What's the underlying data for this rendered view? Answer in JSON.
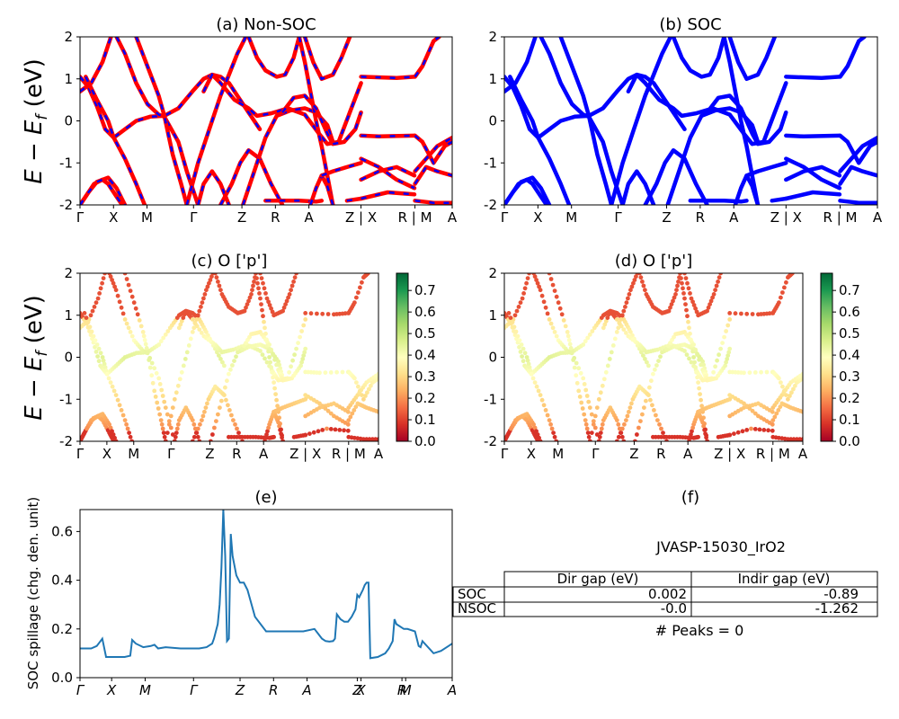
{
  "figure": {
    "background": "#ffffff"
  },
  "ylabel_band": "E − E",
  "ylabel_sub": "f",
  "ylabel_unit": " (eV)",
  "kpath_labels": [
    "Γ",
    "X",
    "M",
    "Γ",
    "Z",
    "R",
    "A",
    "Z | X",
    "R | M",
    "A"
  ],
  "kpath_labels_e": [
    "Γ",
    "X",
    "M",
    "Γ",
    "Z",
    "R",
    "A",
    "Z",
    "X",
    "R",
    "M",
    "A"
  ],
  "chart_data": [
    {
      "id": "a",
      "type": "line",
      "title": "(a) Non-SOC",
      "ylim": [
        -2,
        2
      ],
      "yticks": [
        -2,
        -1,
        0,
        1,
        2
      ],
      "colors": {
        "primary": "#ff0000",
        "dash": "#0000ff"
      },
      "bands": [
        [
          [
            0,
            -2
          ],
          [
            0.02,
            -1.8
          ],
          [
            0.05,
            -1.5
          ],
          [
            0.08,
            -1.4
          ],
          [
            0.1,
            -1.5
          ],
          [
            0.13,
            -1.8
          ],
          [
            0.15,
            -2
          ]
        ],
        [
          [
            0,
            -2
          ],
          [
            0.03,
            -1.7
          ],
          [
            0.06,
            -1.45
          ],
          [
            0.1,
            -1.35
          ],
          [
            0.13,
            -1.6
          ],
          [
            0.16,
            -2
          ]
        ],
        [
          [
            0,
            1.05
          ],
          [
            0.03,
            0.8
          ],
          [
            0.06,
            0.35
          ],
          [
            0.09,
            -0.2
          ],
          [
            0.12,
            -0.4
          ],
          [
            0.16,
            -0.2
          ],
          [
            0.2,
            0.0
          ],
          [
            0.25,
            0.1
          ],
          [
            0.3,
            0.12
          ],
          [
            0.35,
            0.3
          ],
          [
            0.4,
            0.7
          ],
          [
            0.44,
            1.0
          ],
          [
            0.47,
            1.1
          ],
          [
            0.5,
            1.05
          ],
          [
            0.53,
            0.9
          ],
          [
            0.56,
            0.6
          ],
          [
            0.6,
            0.2
          ],
          [
            0.64,
            -0.2
          ]
        ],
        [
          [
            0,
            0.7
          ],
          [
            0.04,
            0.9
          ],
          [
            0.08,
            1.4
          ],
          [
            0.11,
            2
          ]
        ],
        [
          [
            0.02,
            1.05
          ],
          [
            0.06,
            0.5
          ],
          [
            0.1,
            0.0
          ],
          [
            0.12,
            -0.4
          ],
          [
            0.16,
            -0.9
          ],
          [
            0.2,
            -1.5
          ],
          [
            0.23,
            -2
          ]
        ],
        [
          [
            0.13,
            2
          ],
          [
            0.16,
            1.6
          ],
          [
            0.2,
            0.9
          ],
          [
            0.24,
            0.4
          ],
          [
            0.28,
            0.15
          ],
          [
            0.3,
            0.1
          ],
          [
            0.35,
            -0.5
          ],
          [
            0.38,
            -1.2
          ],
          [
            0.42,
            -2
          ]
        ],
        [
          [
            0.2,
            2
          ],
          [
            0.24,
            1.3
          ],
          [
            0.28,
            0.6
          ],
          [
            0.3,
            0.12
          ],
          [
            0.33,
            -0.8
          ],
          [
            0.36,
            -1.5
          ],
          [
            0.38,
            -2
          ]
        ],
        [
          [
            0.42,
            -2
          ],
          [
            0.44,
            -1.5
          ],
          [
            0.47,
            -1.2
          ],
          [
            0.5,
            -1.5
          ],
          [
            0.53,
            -2
          ]
        ],
        [
          [
            0.44,
            0.7
          ],
          [
            0.47,
            1.1
          ],
          [
            0.5,
            0.9
          ],
          [
            0.55,
            0.5
          ],
          [
            0.6,
            0.3
          ],
          [
            0.63,
            0.12
          ],
          [
            0.68,
            0.18
          ],
          [
            0.74,
            0.3
          ],
          [
            0.8,
            0.15
          ],
          [
            0.85,
            -0.3
          ],
          [
            0.88,
            -0.55
          ],
          [
            0.92,
            -0.5
          ],
          [
            0.96,
            0.2
          ],
          [
            1,
            0.9
          ]
        ],
        [
          [
            0.38,
            -2
          ],
          [
            0.42,
            -1.0
          ],
          [
            0.46,
            -0.2
          ],
          [
            0.5,
            0.6
          ],
          [
            0.53,
            1.1
          ],
          [
            0.56,
            1.6
          ],
          [
            0.59,
            2
          ]
        ],
        [
          [
            0.5,
            -2
          ],
          [
            0.54,
            -1.5
          ],
          [
            0.57,
            -1.0
          ],
          [
            0.6,
            -0.7
          ],
          [
            0.64,
            -0.9
          ],
          [
            0.68,
            -1.5
          ],
          [
            0.72,
            -2
          ]
        ],
        [
          [
            0.58,
            -2
          ],
          [
            0.62,
            -1.2
          ],
          [
            0.66,
            -0.4
          ],
          [
            0.7,
            0.12
          ],
          [
            0.75,
            0.25
          ],
          [
            0.8,
            0.3
          ],
          [
            0.84,
            0.2
          ],
          [
            0.88,
            -0.1
          ],
          [
            0.9,
            -0.5
          ]
        ],
        [
          [
            0.66,
            -1.9
          ],
          [
            0.72,
            -1.9
          ],
          [
            0.78,
            -1.9
          ],
          [
            0.84,
            -1.92
          ],
          [
            0.86,
            -1.9
          ]
        ],
        [
          [
            0.6,
            2
          ],
          [
            0.63,
            1.5
          ],
          [
            0.66,
            1.2
          ],
          [
            0.7,
            1.05
          ],
          [
            0.73,
            1.1
          ],
          [
            0.76,
            1.5
          ],
          [
            0.78,
            2
          ]
        ],
        [
          [
            0.8,
            2
          ],
          [
            0.83,
            1.4
          ],
          [
            0.86,
            1.0
          ],
          [
            0.9,
            1.1
          ],
          [
            0.93,
            1.5
          ],
          [
            0.96,
            2
          ]
        ],
        [
          [
            0.78,
            2
          ],
          [
            0.8,
            1.4
          ],
          [
            0.82,
            0.7
          ],
          [
            0.84,
            0.0
          ],
          [
            0.86,
            -0.6
          ],
          [
            0.88,
            -1.3
          ],
          [
            0.9,
            -2
          ]
        ],
        [
          [
            0.82,
            -2
          ],
          [
            0.84,
            -1.6
          ],
          [
            0.86,
            -1.3
          ],
          [
            0.88,
            -1.55
          ],
          [
            0.9,
            -2
          ]
        ],
        [
          [
            0.86,
            -1.3
          ],
          [
            0.9,
            -1.2
          ],
          [
            0.95,
            -1.1
          ],
          [
            1,
            -1.0
          ]
        ],
        [
          [
            0.72,
            0.2
          ],
          [
            0.76,
            0.55
          ],
          [
            0.8,
            0.6
          ],
          [
            0.84,
            0.3
          ],
          [
            0.88,
            -0.3
          ],
          [
            0.9,
            -0.55
          ],
          [
            0.94,
            -0.5
          ],
          [
            0.98,
            -0.2
          ],
          [
            1,
            0.2
          ]
        ],
        [
          [
            0.95,
            -1.9
          ],
          [
            1,
            -1.85
          ]
        ]
      ],
      "bands_seg2": [
        [
          [
            0,
            1.05
          ],
          [
            0.2,
            1.02
          ],
          [
            0.3,
            1.05
          ]
        ],
        [
          [
            0,
            -0.35
          ],
          [
            0.1,
            -0.37
          ],
          [
            0.3,
            -0.35
          ]
        ],
        [
          [
            0,
            -1.4
          ],
          [
            0.1,
            -1.2
          ],
          [
            0.2,
            -1.1
          ],
          [
            0.3,
            -1.3
          ]
        ],
        [
          [
            0,
            -1.85
          ],
          [
            0.15,
            -1.7
          ],
          [
            0.3,
            -1.75
          ]
        ],
        [
          [
            0,
            -0.9
          ],
          [
            0.1,
            -1.1
          ],
          [
            0.2,
            -1.4
          ],
          [
            0.3,
            -1.6
          ]
        ]
      ],
      "bands_seg3": [
        [
          [
            0,
            1.05
          ],
          [
            0.2,
            1.3
          ],
          [
            0.5,
            1.9
          ],
          [
            0.65,
            2
          ]
        ],
        [
          [
            0,
            -0.35
          ],
          [
            0.2,
            -0.5
          ],
          [
            0.5,
            -1.0
          ],
          [
            0.8,
            -0.6
          ],
          [
            1,
            -0.5
          ]
        ],
        [
          [
            0,
            -1.2
          ],
          [
            0.3,
            -0.9
          ],
          [
            0.6,
            -0.6
          ],
          [
            1,
            -0.4
          ]
        ],
        [
          [
            0,
            -1.5
          ],
          [
            0.3,
            -1.1
          ],
          [
            0.6,
            -1.2
          ],
          [
            1,
            -1.3
          ]
        ],
        [
          [
            0,
            -1.9
          ],
          [
            0.5,
            -1.95
          ],
          [
            1,
            -1.95
          ]
        ]
      ]
    },
    {
      "id": "b",
      "type": "line",
      "title": "(b) SOC",
      "ylim": [
        -2,
        2
      ],
      "yticks": [
        -2,
        -1,
        0,
        1,
        2
      ],
      "colors": {
        "primary": "#0000ff"
      }
    },
    {
      "id": "c",
      "type": "scatter",
      "title": "(c)  O ['p']",
      "ylim": [
        -2,
        2
      ],
      "yticks": [
        -2,
        -1,
        0,
        1,
        2
      ],
      "colorbar": {
        "ticks": [
          "0.0",
          "0.1",
          "0.2",
          "0.3",
          "0.4",
          "0.5",
          "0.6",
          "0.7"
        ],
        "range": [
          0,
          0.78
        ],
        "colormap": "RdYlGn"
      }
    },
    {
      "id": "d",
      "type": "scatter",
      "title": "(d) O ['p']",
      "ylim": [
        -2,
        2
      ],
      "yticks": [
        -2,
        -1,
        0,
        1,
        2
      ],
      "colorbar": {
        "ticks": [
          "0.0",
          "0.1",
          "0.2",
          "0.3",
          "0.4",
          "0.5",
          "0.6",
          "0.7"
        ],
        "range": [
          0,
          0.78
        ],
        "colormap": "RdYlGn"
      }
    },
    {
      "id": "e",
      "type": "line",
      "title": "(e)",
      "ylabel": "SOC spillage (chg. den. unit)",
      "ylim": [
        0,
        0.69
      ],
      "yticks": [
        "0.0",
        "0.2",
        "0.4",
        "0.6"
      ],
      "colors": {
        "line": "#1f77b4"
      },
      "x": [
        0,
        0.015,
        0.03,
        0.045,
        0.055,
        0.06,
        0.07,
        0.1,
        0.12,
        0.135,
        0.14,
        0.15,
        0.17,
        0.19,
        0.2,
        0.21,
        0.23,
        0.27,
        0.3,
        0.32,
        0.34,
        0.355,
        0.36,
        0.37,
        0.375,
        0.38,
        0.385,
        0.39,
        0.395,
        0.4,
        0.405,
        0.41,
        0.42,
        0.43,
        0.44,
        0.45,
        0.47,
        0.5,
        0.55,
        0.6,
        0.63,
        0.64,
        0.65,
        0.66,
        0.67,
        0.68,
        0.685,
        0.69,
        0.7,
        0.71,
        0.72,
        0.73,
        0.74,
        0.745,
        0.75,
        0.76,
        0.765,
        0.77,
        0.775,
        0.78,
        0.8,
        0.82,
        0.83,
        0.84,
        0.845,
        0.85,
        0.87,
        0.88,
        0.9,
        0.91,
        0.915,
        0.92,
        0.95,
        0.97,
        0.99,
        1
      ],
      "values": [
        0.12,
        0.12,
        0.12,
        0.13,
        0.15,
        0.16,
        0.085,
        0.085,
        0.085,
        0.09,
        0.155,
        0.14,
        0.125,
        0.13,
        0.135,
        0.12,
        0.125,
        0.12,
        0.12,
        0.12,
        0.125,
        0.14,
        0.16,
        0.22,
        0.3,
        0.45,
        0.69,
        0.5,
        0.15,
        0.16,
        0.59,
        0.5,
        0.42,
        0.39,
        0.39,
        0.36,
        0.25,
        0.19,
        0.19,
        0.19,
        0.2,
        0.18,
        0.16,
        0.15,
        0.148,
        0.15,
        0.16,
        0.26,
        0.24,
        0.23,
        0.23,
        0.25,
        0.28,
        0.34,
        0.33,
        0.36,
        0.38,
        0.39,
        0.39,
        0.08,
        0.085,
        0.1,
        0.12,
        0.15,
        0.24,
        0.22,
        0.2,
        0.2,
        0.19,
        0.13,
        0.125,
        0.15,
        0.1,
        0.11,
        0.13,
        0.14
      ]
    },
    {
      "id": "f",
      "type": "table",
      "title": "(f)",
      "subtitle": "JVASP-15030_IrO2",
      "columns": [
        "Dir gap (eV)",
        "Indir gap (eV)"
      ],
      "rows": [
        {
          "label": "SOC",
          "values": [
            "0.002",
            "-0.89"
          ]
        },
        {
          "label": "NSOC",
          "values": [
            "-0.0",
            "-1.262"
          ]
        }
      ],
      "footer": "# Peaks = 0"
    }
  ]
}
